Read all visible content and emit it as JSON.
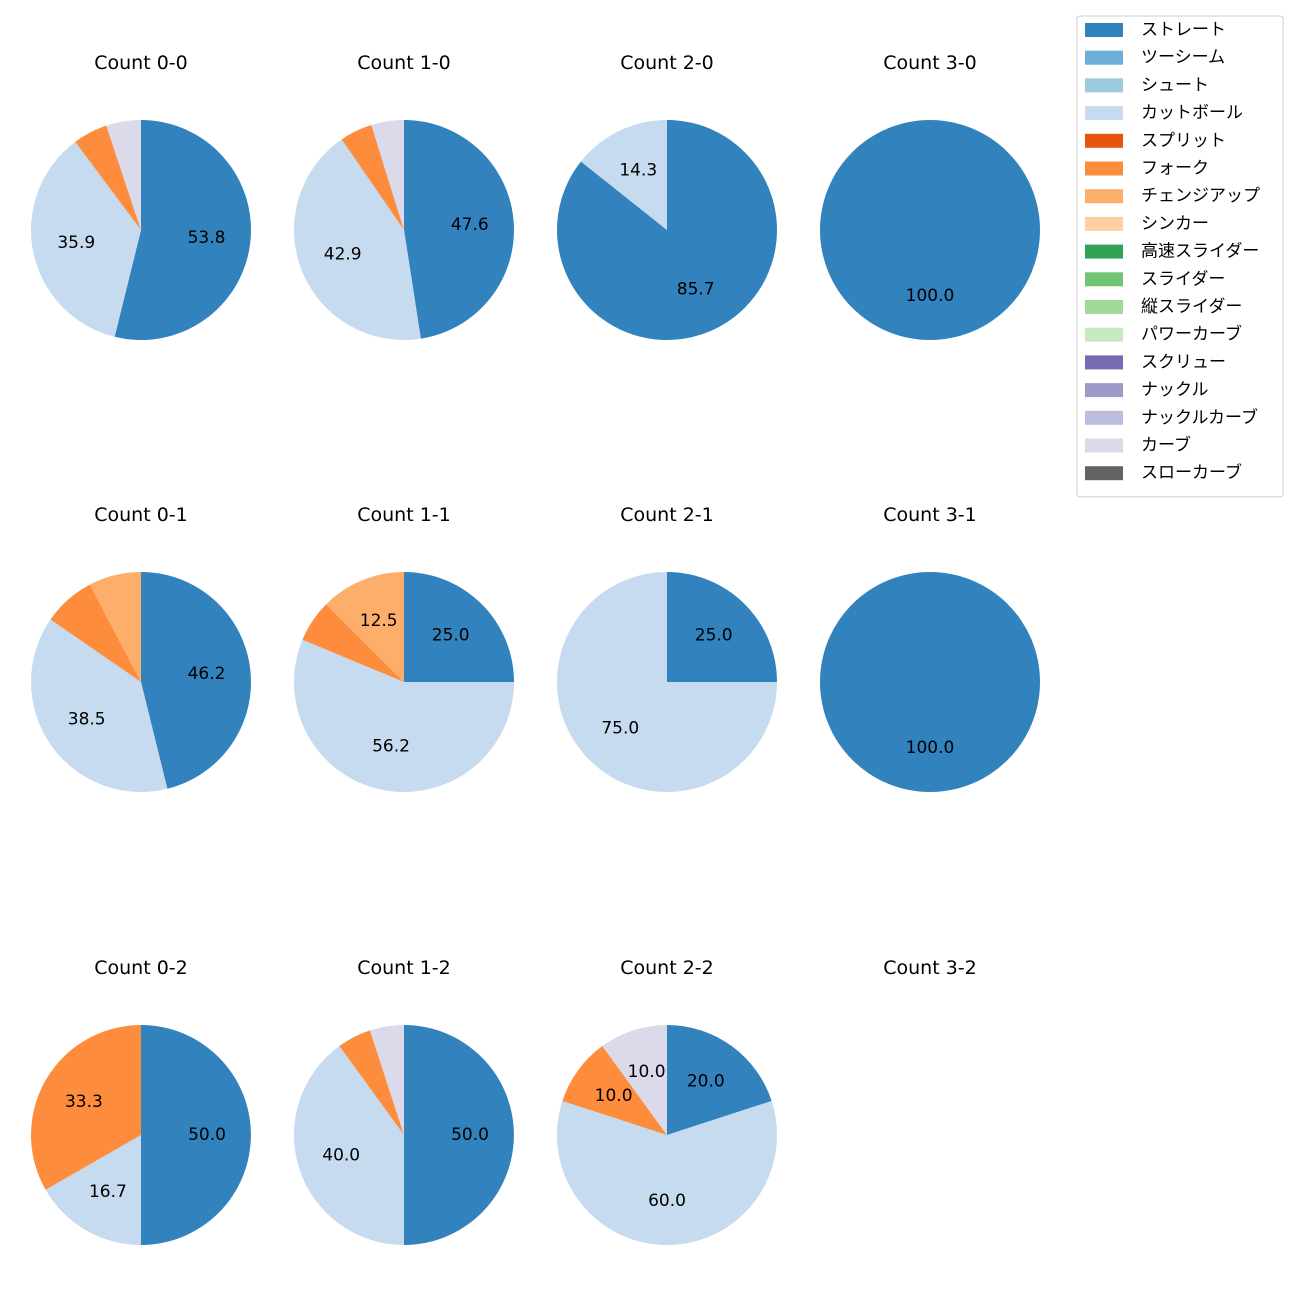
{
  "chart_data": {
    "type": "pie",
    "legend_position": "top-right",
    "legend": [
      {
        "name": "ストレート",
        "color": "#3182bd"
      },
      {
        "name": "ツーシーム",
        "color": "#6baed6"
      },
      {
        "name": "シュート",
        "color": "#9ecae1"
      },
      {
        "name": "カットボール",
        "color": "#c6dbef"
      },
      {
        "name": "スプリット",
        "color": "#e6550d"
      },
      {
        "name": "フォーク",
        "color": "#fd8d3c"
      },
      {
        "name": "チェンジアップ",
        "color": "#fdae6b"
      },
      {
        "name": "シンカー",
        "color": "#fdd0a2"
      },
      {
        "name": "高速スライダー",
        "color": "#31a354"
      },
      {
        "name": "スライダー",
        "color": "#74c476"
      },
      {
        "name": "縦スライダー",
        "color": "#a1d99b"
      },
      {
        "name": "パワーカーブ",
        "color": "#c7e9c0"
      },
      {
        "name": "スクリュー",
        "color": "#756bb1"
      },
      {
        "name": "ナックル",
        "color": "#9e9ac8"
      },
      {
        "name": "ナックルカーブ",
        "color": "#bcbddc"
      },
      {
        "name": "カーブ",
        "color": "#dadaeb"
      },
      {
        "name": "スローカーブ",
        "color": "#636363"
      }
    ],
    "pies": [
      {
        "title": "Count 0-0",
        "slices": [
          {
            "name": "ストレート",
            "value": 53.8,
            "label": "53.8"
          },
          {
            "name": "カットボール",
            "value": 35.9,
            "label": "35.9"
          },
          {
            "name": "フォーク",
            "value": 5.1,
            "label": ""
          },
          {
            "name": "カーブ",
            "value": 5.1,
            "label": ""
          }
        ]
      },
      {
        "title": "Count 1-0",
        "slices": [
          {
            "name": "ストレート",
            "value": 47.6,
            "label": "47.6"
          },
          {
            "name": "カットボール",
            "value": 42.9,
            "label": "42.9"
          },
          {
            "name": "フォーク",
            "value": 4.8,
            "label": ""
          },
          {
            "name": "カーブ",
            "value": 4.8,
            "label": ""
          }
        ]
      },
      {
        "title": "Count 2-0",
        "slices": [
          {
            "name": "ストレート",
            "value": 85.7,
            "label": "85.7"
          },
          {
            "name": "カットボール",
            "value": 14.3,
            "label": "14.3"
          }
        ]
      },
      {
        "title": "Count 3-0",
        "slices": [
          {
            "name": "ストレート",
            "value": 100.0,
            "label": "100.0"
          }
        ]
      },
      {
        "title": "Count 0-1",
        "slices": [
          {
            "name": "ストレート",
            "value": 46.2,
            "label": "46.2"
          },
          {
            "name": "カットボール",
            "value": 38.5,
            "label": "38.5"
          },
          {
            "name": "フォーク",
            "value": 7.7,
            "label": ""
          },
          {
            "name": "チェンジアップ",
            "value": 7.7,
            "label": ""
          }
        ]
      },
      {
        "title": "Count 1-1",
        "slices": [
          {
            "name": "ストレート",
            "value": 25.0,
            "label": "25.0"
          },
          {
            "name": "カットボール",
            "value": 56.2,
            "label": "56.2"
          },
          {
            "name": "フォーク",
            "value": 6.2,
            "label": ""
          },
          {
            "name": "チェンジアップ",
            "value": 12.5,
            "label": "12.5"
          }
        ]
      },
      {
        "title": "Count 2-1",
        "slices": [
          {
            "name": "ストレート",
            "value": 25.0,
            "label": "25.0"
          },
          {
            "name": "カットボール",
            "value": 75.0,
            "label": "75.0"
          }
        ]
      },
      {
        "title": "Count 3-1",
        "slices": [
          {
            "name": "ストレート",
            "value": 100.0,
            "label": "100.0"
          }
        ]
      },
      {
        "title": "Count 0-2",
        "slices": [
          {
            "name": "ストレート",
            "value": 50.0,
            "label": "50.0"
          },
          {
            "name": "カットボール",
            "value": 16.7,
            "label": "16.7"
          },
          {
            "name": "フォーク",
            "value": 33.3,
            "label": "33.3"
          }
        ]
      },
      {
        "title": "Count 1-2",
        "slices": [
          {
            "name": "ストレート",
            "value": 50.0,
            "label": "50.0"
          },
          {
            "name": "カットボール",
            "value": 40.0,
            "label": "40.0"
          },
          {
            "name": "フォーク",
            "value": 5.0,
            "label": ""
          },
          {
            "name": "カーブ",
            "value": 5.0,
            "label": ""
          }
        ]
      },
      {
        "title": "Count 2-2",
        "slices": [
          {
            "name": "ストレート",
            "value": 20.0,
            "label": "20.0"
          },
          {
            "name": "カットボール",
            "value": 60.0,
            "label": "60.0"
          },
          {
            "name": "フォーク",
            "value": 10.0,
            "label": "10.0"
          },
          {
            "name": "カーブ",
            "value": 10.0,
            "label": "10.0"
          }
        ]
      },
      {
        "title": "Count 3-2",
        "slices": []
      }
    ]
  }
}
